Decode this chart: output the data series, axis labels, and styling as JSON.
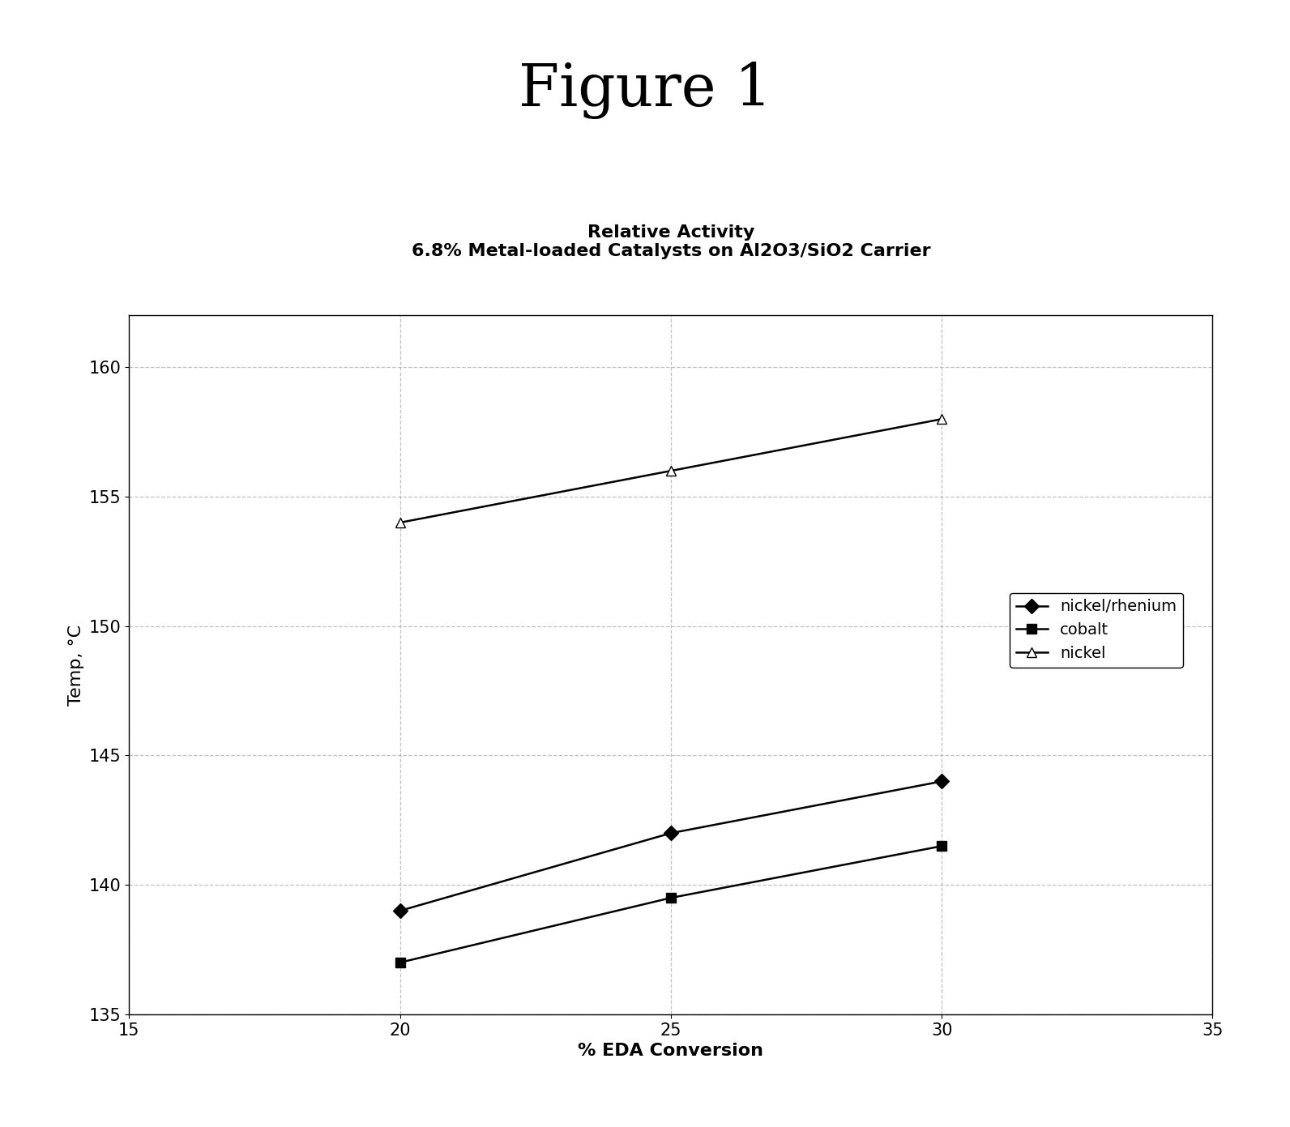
{
  "title": "Figure 1",
  "chart_title_line1": "Relative Activity",
  "chart_title_line2": "6.8% Metal-loaded Catalysts on Al2O3/SiO2 Carrier",
  "xlabel": "% EDA Conversion",
  "ylabel": "Temp, °C",
  "xlim": [
    15,
    35
  ],
  "ylim": [
    135,
    162
  ],
  "xticks": [
    15,
    20,
    25,
    30,
    35
  ],
  "yticks": [
    135,
    140,
    145,
    150,
    155,
    160
  ],
  "series": [
    {
      "label": "nickel/rhenium",
      "x": [
        20,
        25,
        30
      ],
      "y": [
        139.0,
        142.0,
        144.0
      ],
      "color": "#000000",
      "marker": "D",
      "markersize": 9,
      "linewidth": 1.8,
      "markerfacecolor": "#000000"
    },
    {
      "label": "cobalt",
      "x": [
        20,
        25,
        30
      ],
      "y": [
        137.0,
        139.5,
        141.5
      ],
      "color": "#000000",
      "marker": "s",
      "markersize": 9,
      "linewidth": 1.8,
      "markerfacecolor": "#000000"
    },
    {
      "label": "nickel",
      "x": [
        20,
        25,
        30
      ],
      "y": [
        154.0,
        156.0,
        158.0
      ],
      "color": "#000000",
      "marker": "^",
      "markersize": 9,
      "linewidth": 1.8,
      "markerfacecolor": "white"
    }
  ],
  "grid_color": "#999999",
  "grid_style": "--",
  "grid_alpha": 0.6,
  "background_color": "#ffffff",
  "figure_bg": "#ffffff",
  "legend_loc": "center right",
  "title_fontsize": 52,
  "chart_title_fontsize": 16,
  "axis_label_fontsize": 16,
  "tick_fontsize": 15,
  "legend_fontsize": 14
}
